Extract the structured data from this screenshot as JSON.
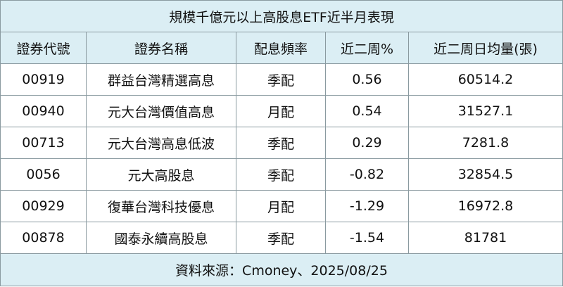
{
  "table": {
    "title": "規模千億元以上高股息ETF近半月表現",
    "header": [
      "證券代號",
      "證券名稱",
      "配息頻率",
      "近二周%",
      "近二周日均量(張)"
    ],
    "rows": [
      [
        "00919",
        "群益台灣精選高息",
        "季配",
        "0.56",
        "60514.2"
      ],
      [
        "00940",
        "元大台灣價值高息",
        "月配",
        "0.54",
        "31527.1"
      ],
      [
        "00713",
        "元大台灣高息低波",
        "季配",
        "0.29",
        "7281.8"
      ],
      [
        "0056",
        "元大高股息",
        "季配",
        "-0.82",
        "32854.5"
      ],
      [
        "00929",
        "復華台灣科技優息",
        "月配",
        "-1.29",
        "16972.8"
      ],
      [
        "00878",
        "國泰永續高股息",
        "季配",
        "-1.54",
        "81781"
      ]
    ],
    "source": "資料來源：Cmoney、2025/08/25"
  }
}
